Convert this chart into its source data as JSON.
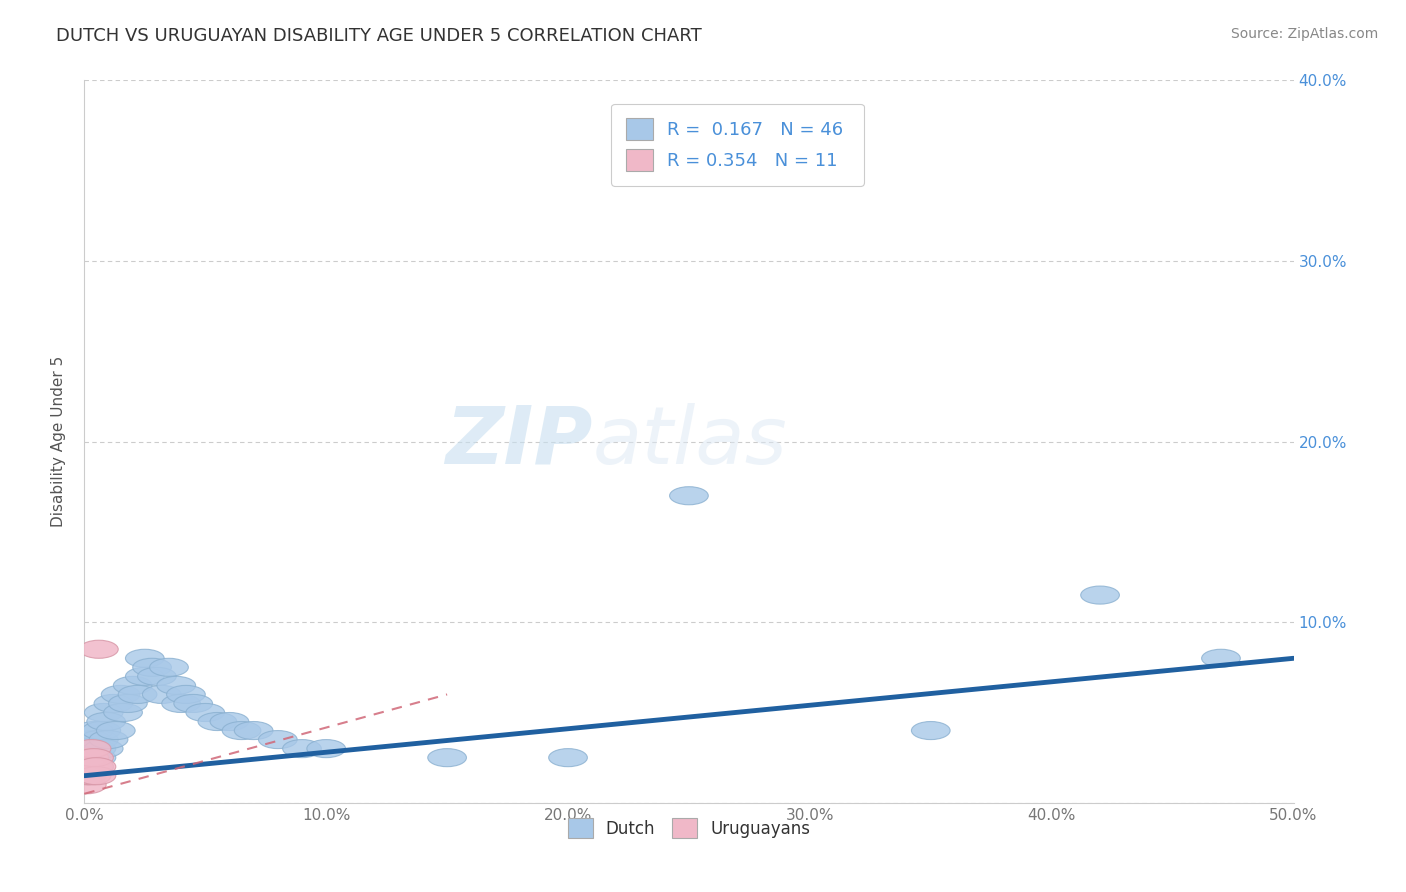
{
  "title": "DUTCH VS URUGUAYAN DISABILITY AGE UNDER 5 CORRELATION CHART",
  "source_text": "Source: ZipAtlas.com",
  "ylabel": "Disability Age Under 5",
  "xlim": [
    0.0,
    0.5
  ],
  "ylim": [
    0.0,
    0.4
  ],
  "dutch_color": "#a8c8e8",
  "dutch_edge_color": "#8ab0d0",
  "uruguayan_color": "#f0b8c8",
  "uruguayan_edge_color": "#d898a8",
  "dutch_line_color": "#2060a0",
  "uruguayan_line_color": "#d06878",
  "dutch_R": 0.167,
  "dutch_N": 46,
  "uruguayan_R": 0.354,
  "uruguayan_N": 11,
  "watermark_zip": "ZIP",
  "watermark_atlas": "atlas",
  "background_color": "#ffffff",
  "dutch_points_x": [
    0.001,
    0.002,
    0.002,
    0.003,
    0.003,
    0.004,
    0.004,
    0.005,
    0.005,
    0.006,
    0.007,
    0.008,
    0.008,
    0.009,
    0.01,
    0.012,
    0.013,
    0.015,
    0.016,
    0.018,
    0.02,
    0.022,
    0.025,
    0.025,
    0.028,
    0.03,
    0.032,
    0.035,
    0.038,
    0.04,
    0.042,
    0.045,
    0.05,
    0.055,
    0.06,
    0.065,
    0.07,
    0.08,
    0.09,
    0.1,
    0.15,
    0.2,
    0.25,
    0.35,
    0.42,
    0.47
  ],
  "dutch_points_y": [
    0.015,
    0.02,
    0.03,
    0.025,
    0.035,
    0.02,
    0.04,
    0.025,
    0.03,
    0.035,
    0.04,
    0.03,
    0.05,
    0.045,
    0.035,
    0.055,
    0.04,
    0.06,
    0.05,
    0.055,
    0.065,
    0.06,
    0.07,
    0.08,
    0.075,
    0.07,
    0.06,
    0.075,
    0.065,
    0.055,
    0.06,
    0.055,
    0.05,
    0.045,
    0.045,
    0.04,
    0.04,
    0.035,
    0.03,
    0.03,
    0.025,
    0.025,
    0.17,
    0.04,
    0.115,
    0.08
  ],
  "uruguayan_points_x": [
    0.001,
    0.001,
    0.002,
    0.002,
    0.003,
    0.003,
    0.004,
    0.004,
    0.005,
    0.005,
    0.006
  ],
  "uruguayan_points_y": [
    0.01,
    0.015,
    0.02,
    0.025,
    0.015,
    0.03,
    0.02,
    0.025,
    0.015,
    0.02,
    0.085
  ],
  "dutch_line_x0": 0.0,
  "dutch_line_x1": 0.5,
  "dutch_line_y0": 0.015,
  "dutch_line_y1": 0.08,
  "uru_line_x0": 0.0,
  "uru_line_x1": 0.15,
  "uru_line_y0": 0.005,
  "uru_line_y1": 0.06
}
